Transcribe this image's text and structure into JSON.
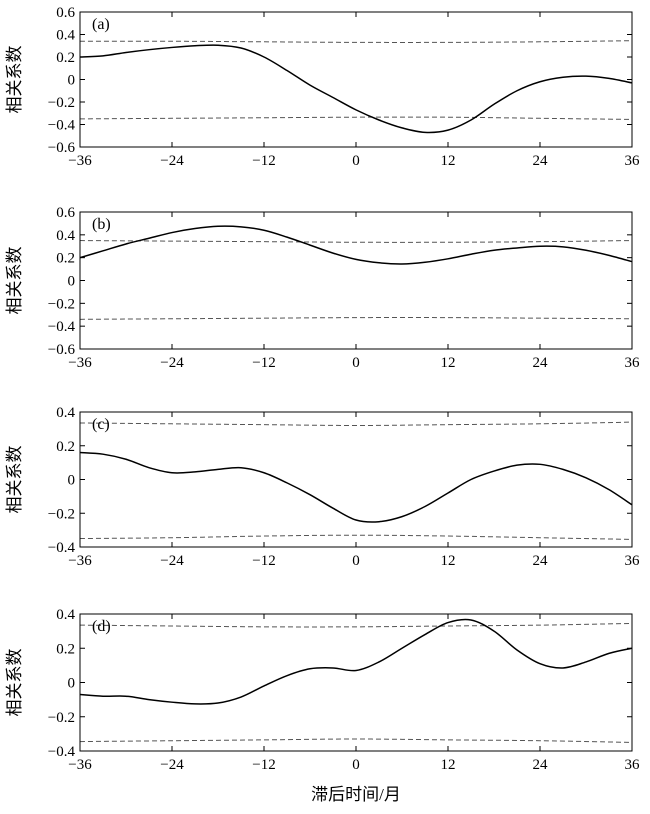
{
  "chart_data": [
    {
      "type": "line",
      "annotation": "(a)",
      "ylabel": "相关系数",
      "xlim": [
        -36,
        36
      ],
      "ylim": [
        -0.6,
        0.6
      ],
      "xticks": [
        -36,
        -24,
        -12,
        0,
        12,
        24,
        36
      ],
      "xtick_labels": [
        "−36",
        "−24",
        "−12",
        "0",
        "12",
        "24",
        "36"
      ],
      "yticks": [
        0.6,
        0.4,
        0.2,
        0,
        -0.2,
        -0.4,
        -0.6
      ],
      "ytick_labels": [
        "0.6",
        "0.4",
        "0.2",
        "0",
        "−0.2",
        "−0.4",
        "−0.6"
      ],
      "series": [
        {
          "x": [
            -36,
            -33,
            -30,
            -27,
            -24,
            -21,
            -18,
            -15,
            -12,
            -9,
            -6,
            -3,
            0,
            3,
            6,
            9,
            12,
            15,
            18,
            21,
            24,
            27,
            30,
            33,
            36
          ],
          "y": [
            0.2,
            0.21,
            0.24,
            0.265,
            0.285,
            0.3,
            0.305,
            0.28,
            0.2,
            0.08,
            -0.05,
            -0.16,
            -0.27,
            -0.36,
            -0.43,
            -0.47,
            -0.45,
            -0.36,
            -0.22,
            -0.1,
            -0.02,
            0.02,
            0.03,
            0.01,
            -0.03
          ]
        }
      ],
      "upper_significance": {
        "x": [
          -36,
          -24,
          -12,
          0,
          12,
          24,
          36
        ],
        "y": [
          0.34,
          0.34,
          0.335,
          0.33,
          0.33,
          0.335,
          0.345
        ]
      },
      "lower_significance": {
        "x": [
          -36,
          -24,
          -12,
          0,
          12,
          24,
          36
        ],
        "y": [
          -0.35,
          -0.345,
          -0.34,
          -0.335,
          -0.335,
          -0.345,
          -0.355
        ]
      }
    },
    {
      "type": "line",
      "annotation": "(b)",
      "ylabel": "相关系数",
      "xlim": [
        -36,
        36
      ],
      "ylim": [
        -0.6,
        0.6
      ],
      "xticks": [
        -36,
        -24,
        -12,
        0,
        12,
        24,
        36
      ],
      "xtick_labels": [
        "−36",
        "−24",
        "−12",
        "0",
        "12",
        "24",
        "36"
      ],
      "yticks": [
        0.6,
        0.4,
        0.2,
        0,
        -0.2,
        -0.4,
        -0.6
      ],
      "ytick_labels": [
        "0.6",
        "0.4",
        "0.2",
        "0",
        "−0.2",
        "−0.4",
        "−0.6"
      ],
      "series": [
        {
          "x": [
            -36,
            -33,
            -30,
            -27,
            -24,
            -21,
            -18,
            -15,
            -12,
            -9,
            -6,
            -3,
            0,
            3,
            6,
            9,
            12,
            15,
            18,
            21,
            24,
            27,
            30,
            33,
            36
          ],
          "y": [
            0.2,
            0.26,
            0.32,
            0.37,
            0.42,
            0.455,
            0.475,
            0.47,
            0.44,
            0.38,
            0.31,
            0.24,
            0.185,
            0.155,
            0.145,
            0.16,
            0.19,
            0.23,
            0.265,
            0.285,
            0.3,
            0.295,
            0.265,
            0.22,
            0.165
          ]
        }
      ],
      "upper_significance": {
        "x": [
          -36,
          -24,
          -12,
          0,
          12,
          24,
          36
        ],
        "y": [
          0.35,
          0.345,
          0.34,
          0.335,
          0.335,
          0.34,
          0.35
        ]
      },
      "lower_significance": {
        "x": [
          -36,
          -24,
          -12,
          0,
          12,
          24,
          36
        ],
        "y": [
          -0.34,
          -0.335,
          -0.33,
          -0.325,
          -0.325,
          -0.33,
          -0.335
        ]
      }
    },
    {
      "type": "line",
      "annotation": "(c)",
      "ylabel": "相关系数",
      "xlim": [
        -36,
        36
      ],
      "ylim": [
        -0.4,
        0.4
      ],
      "xticks": [
        -36,
        -24,
        -12,
        0,
        12,
        24,
        36
      ],
      "xtick_labels": [
        "−36",
        "−24",
        "−12",
        "0",
        "12",
        "24",
        "36"
      ],
      "yticks": [
        0.4,
        0.2,
        0,
        -0.2,
        -0.4
      ],
      "ytick_labels": [
        "0.4",
        "0.2",
        "0",
        "−0.2",
        "−0.4"
      ],
      "series": [
        {
          "x": [
            -36,
            -33,
            -30,
            -27,
            -24,
            -21,
            -18,
            -15,
            -12,
            -9,
            -6,
            -3,
            0,
            3,
            6,
            9,
            12,
            15,
            18,
            21,
            24,
            27,
            30,
            33,
            36
          ],
          "y": [
            0.16,
            0.15,
            0.12,
            0.07,
            0.04,
            0.045,
            0.06,
            0.07,
            0.04,
            -0.02,
            -0.09,
            -0.17,
            -0.24,
            -0.25,
            -0.22,
            -0.16,
            -0.08,
            0.0,
            0.05,
            0.085,
            0.09,
            0.06,
            0.01,
            -0.06,
            -0.15
          ]
        }
      ],
      "upper_significance": {
        "x": [
          -36,
          -24,
          -12,
          0,
          12,
          24,
          36
        ],
        "y": [
          0.335,
          0.33,
          0.325,
          0.32,
          0.325,
          0.33,
          0.34
        ]
      },
      "lower_significance": {
        "x": [
          -36,
          -24,
          -12,
          0,
          12,
          24,
          36
        ],
        "y": [
          -0.35,
          -0.345,
          -0.335,
          -0.33,
          -0.335,
          -0.345,
          -0.355
        ]
      }
    },
    {
      "type": "line",
      "annotation": "(d)",
      "ylabel": "相关系数",
      "xlabel": "滞后时间/月",
      "xlim": [
        -36,
        36
      ],
      "ylim": [
        -0.4,
        0.4
      ],
      "xticks": [
        -36,
        -24,
        -12,
        0,
        12,
        24,
        36
      ],
      "xtick_labels": [
        "−36",
        "−24",
        "−12",
        "0",
        "12",
        "24",
        "36"
      ],
      "yticks": [
        0.4,
        0.2,
        0,
        -0.2,
        -0.4
      ],
      "ytick_labels": [
        "0.4",
        "0.2",
        "0",
        "−0.2",
        "−0.4"
      ],
      "series": [
        {
          "x": [
            -36,
            -33,
            -30,
            -27,
            -24,
            -21,
            -18,
            -15,
            -12,
            -9,
            -6,
            -3,
            0,
            3,
            6,
            9,
            12,
            15,
            18,
            21,
            24,
            27,
            30,
            33,
            36
          ],
          "y": [
            -0.07,
            -0.08,
            -0.08,
            -0.1,
            -0.115,
            -0.125,
            -0.12,
            -0.085,
            -0.02,
            0.04,
            0.08,
            0.085,
            0.07,
            0.12,
            0.2,
            0.28,
            0.35,
            0.365,
            0.3,
            0.19,
            0.11,
            0.085,
            0.12,
            0.17,
            0.2
          ]
        }
      ],
      "upper_significance": {
        "x": [
          -36,
          -24,
          -12,
          0,
          12,
          24,
          36
        ],
        "y": [
          0.335,
          0.33,
          0.325,
          0.325,
          0.33,
          0.335,
          0.345
        ]
      },
      "lower_significance": {
        "x": [
          -36,
          -24,
          -12,
          0,
          12,
          24,
          36
        ],
        "y": [
          -0.345,
          -0.34,
          -0.335,
          -0.33,
          -0.335,
          -0.34,
          -0.35
        ]
      }
    }
  ],
  "colors": {
    "line": "#000000",
    "significance": "#555555",
    "frame": "#000000"
  }
}
